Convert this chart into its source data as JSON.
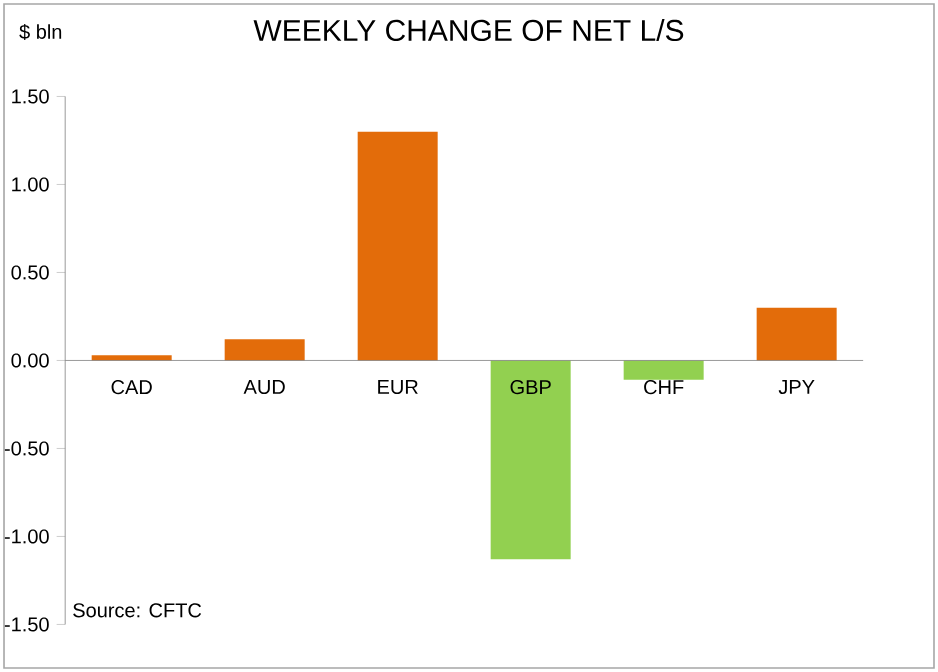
{
  "chart_data": {
    "type": "bar",
    "title": "WEEKLY CHANGE OF NET L/S",
    "ylabel": "$ bln",
    "categories": [
      "CAD",
      "AUD",
      "EUR",
      "GBP",
      "CHF",
      "JPY"
    ],
    "values": [
      0.03,
      0.12,
      1.3,
      -1.13,
      -0.11,
      0.3
    ],
    "colors": [
      "#e36c0a",
      "#e36c0a",
      "#e36c0a",
      "#92d050",
      "#92d050",
      "#e36c0a"
    ],
    "ylim": [
      -1.5,
      1.5
    ],
    "yticks": [
      {
        "value": -1.5,
        "label": "-1.50"
      },
      {
        "value": -1.0,
        "label": "-1.00"
      },
      {
        "value": -0.5,
        "label": "-0.50"
      },
      {
        "value": 0,
        "label": "0.00"
      },
      {
        "value": 0.5,
        "label": "0.50"
      },
      {
        "value": 1.0,
        "label": "1.00"
      },
      {
        "value": 1.5,
        "label": "1.50"
      }
    ],
    "grid": false,
    "annotations": [
      "Source: CFTC"
    ]
  }
}
